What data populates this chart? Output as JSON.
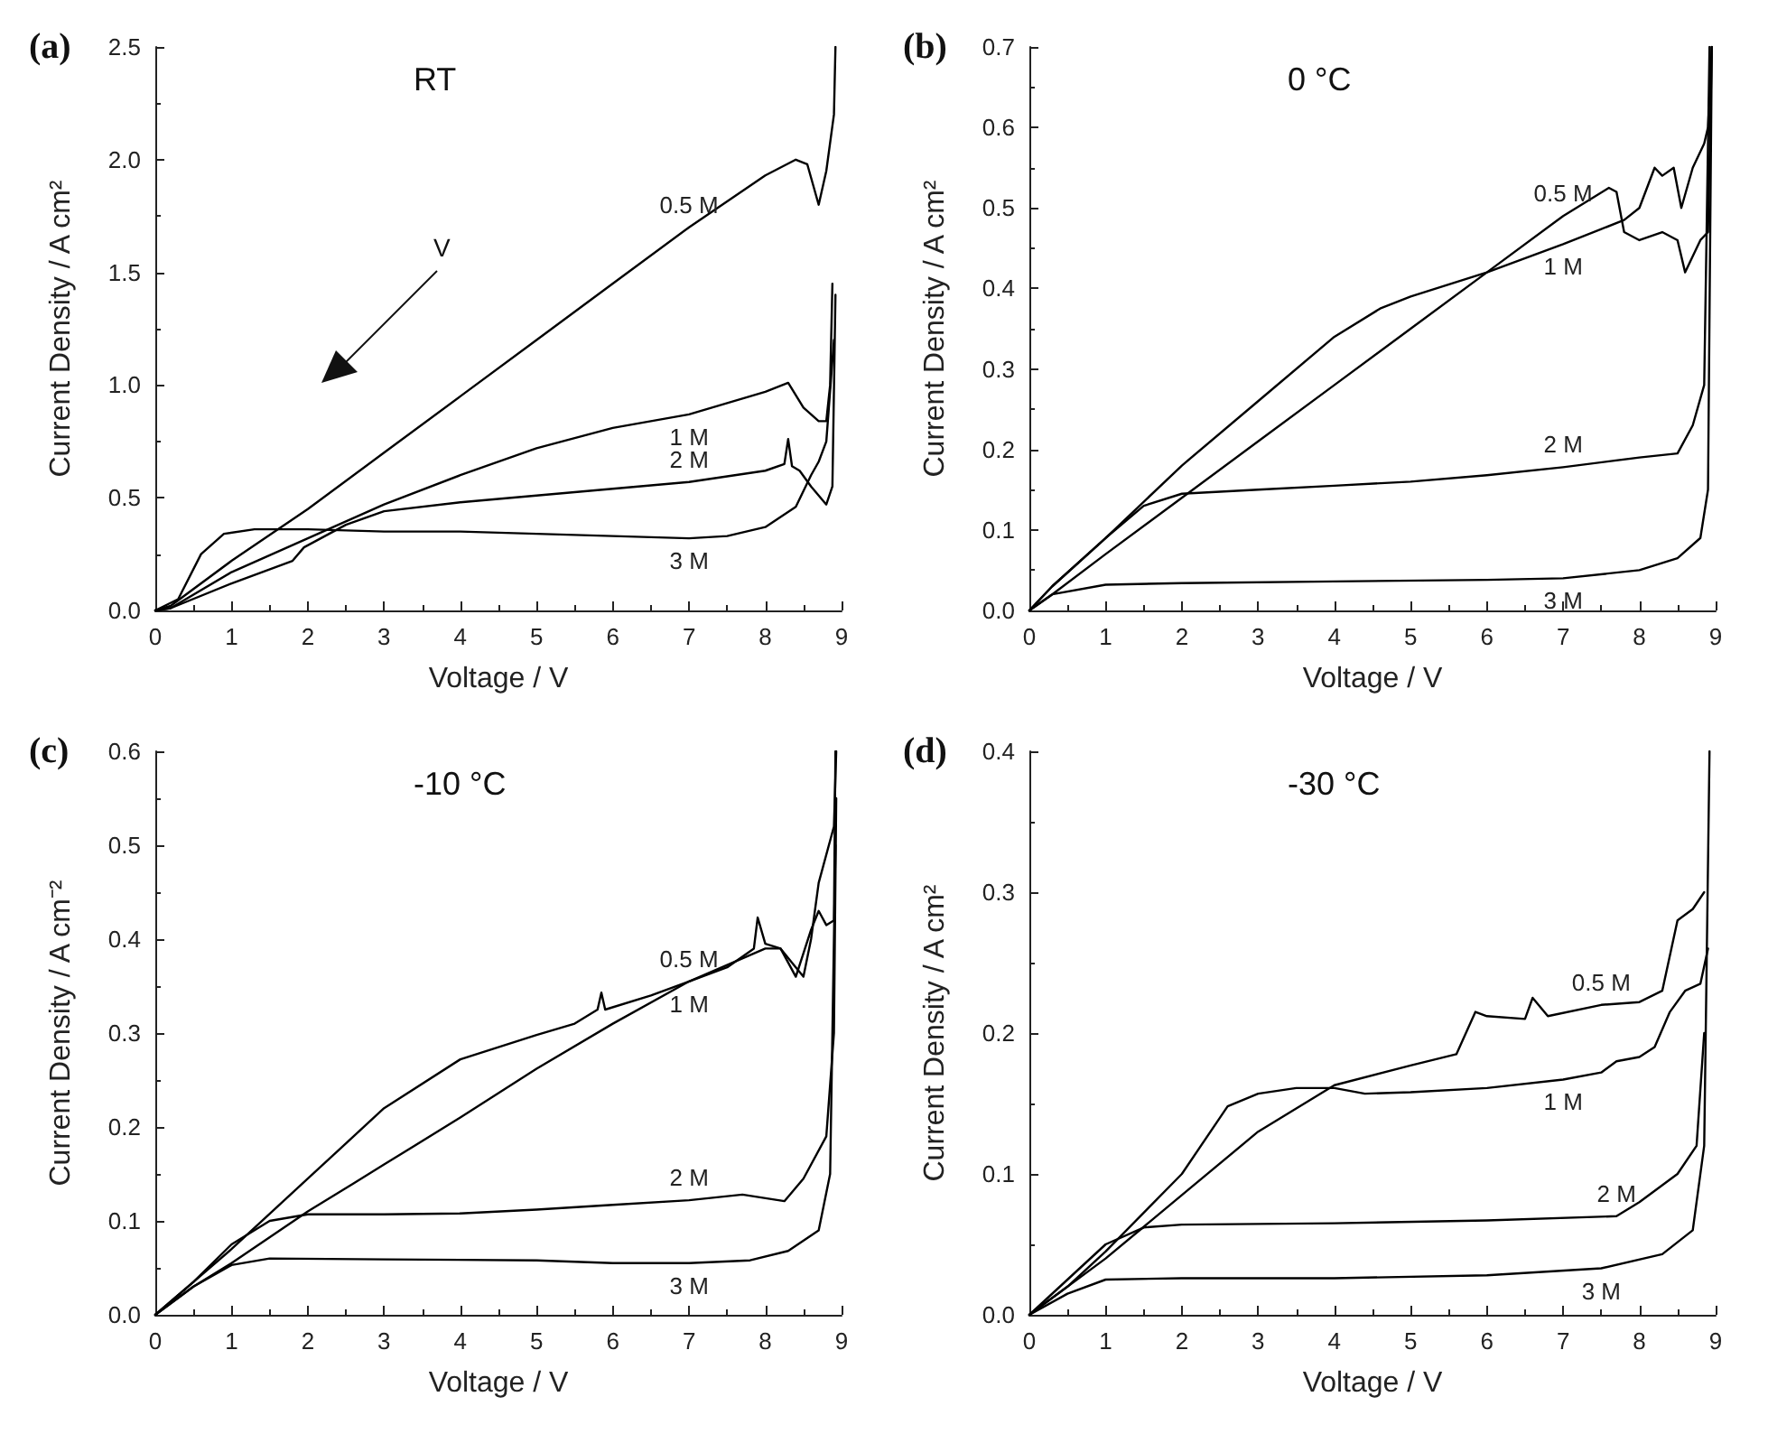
{
  "chart_data": [
    {
      "type": "line",
      "title": "RT",
      "xlabel": "Voltage / V",
      "ylabel": "Current Density / A cm²",
      "annotations": [
        "(a)",
        "V"
      ],
      "marker": "none",
      "line_style": "solid",
      "xlim": [
        0,
        9
      ],
      "xticks": [
        0,
        1,
        2,
        3,
        4,
        5,
        6,
        7,
        8,
        9
      ],
      "ylim": [
        0,
        2.5
      ],
      "yticks": [
        {
          "value": 0,
          "label": "0.0"
        },
        0.5,
        {
          "value": 1,
          "label": "1.0"
        },
        1.5,
        {
          "value": 2,
          "label": "2.0"
        },
        2.5
      ],
      "series": [
        {
          "name": "0.5 M",
          "color": "#000000",
          "x": [
            0,
            0.2,
            1,
            2,
            3,
            4,
            5,
            6,
            7,
            8,
            8.4,
            8.55,
            8.7,
            8.8,
            8.9,
            8.92
          ],
          "values": [
            0,
            0.02,
            0.22,
            0.45,
            0.7,
            0.95,
            1.2,
            1.45,
            1.7,
            1.93,
            2.0,
            1.98,
            1.8,
            1.95,
            2.2,
            2.5
          ]
        },
        {
          "name": "1 M",
          "color": "#000000",
          "x": [
            0,
            0.2,
            1,
            2,
            3,
            4,
            5,
            6,
            7,
            8,
            8.3,
            8.5,
            8.7,
            8.8,
            8.85,
            8.88
          ],
          "values": [
            0,
            0.01,
            0.17,
            0.32,
            0.47,
            0.6,
            0.72,
            0.81,
            0.87,
            0.97,
            1.01,
            0.9,
            0.84,
            0.84,
            1.0,
            1.45
          ]
        },
        {
          "name": "2 M",
          "color": "#000000",
          "x": [
            0,
            0.2,
            1,
            1.8,
            1.95,
            2.5,
            3,
            4,
            5,
            6,
            7,
            8,
            8.25,
            8.3,
            8.35,
            8.45,
            8.6,
            8.8,
            8.88,
            8.92
          ],
          "values": [
            0,
            0.01,
            0.12,
            0.22,
            0.28,
            0.38,
            0.44,
            0.48,
            0.51,
            0.54,
            0.57,
            0.62,
            0.65,
            0.76,
            0.64,
            0.62,
            0.55,
            0.47,
            0.55,
            1.4
          ]
        },
        {
          "name": "3 M",
          "color": "#000000",
          "x": [
            0,
            0.3,
            0.6,
            0.9,
            1.3,
            2,
            3,
            4,
            5,
            6,
            7,
            7.5,
            8,
            8.4,
            8.6,
            8.7,
            8.8,
            8.9
          ],
          "values": [
            0,
            0.05,
            0.25,
            0.34,
            0.36,
            0.36,
            0.35,
            0.35,
            0.34,
            0.33,
            0.32,
            0.33,
            0.37,
            0.46,
            0.6,
            0.66,
            0.75,
            1.2
          ]
        }
      ]
    },
    {
      "type": "line",
      "title": "0 °C",
      "xlabel": "Voltage / V",
      "ylabel": "Current Density / A cm²",
      "annotations": [
        "(b)"
      ],
      "marker": "none",
      "line_style": "solid",
      "xlim": [
        0,
        9
      ],
      "xticks": [
        0,
        1,
        2,
        3,
        4,
        5,
        6,
        7,
        8,
        9
      ],
      "ylim": [
        0,
        0.7
      ],
      "yticks": [
        {
          "value": 0,
          "label": "0.0"
        },
        0.1,
        0.2,
        0.3,
        0.4,
        0.5,
        0.6,
        0.7
      ],
      "series": [
        {
          "name": "0.5 M",
          "color": "#000000",
          "x": [
            0,
            0.3,
            1,
            2,
            3,
            4,
            5,
            6,
            7,
            7.6,
            7.7,
            7.8,
            8,
            8.3,
            8.5,
            8.6,
            8.7,
            8.8,
            8.9,
            8.95
          ],
          "values": [
            0,
            0.02,
            0.07,
            0.14,
            0.21,
            0.28,
            0.35,
            0.42,
            0.49,
            0.525,
            0.52,
            0.47,
            0.46,
            0.47,
            0.46,
            0.42,
            0.44,
            0.46,
            0.47,
            0.7
          ]
        },
        {
          "name": "1 M",
          "color": "#000000",
          "x": [
            0,
            0.3,
            1,
            2,
            3,
            4,
            4.6,
            5,
            6,
            7,
            7.8,
            8,
            8.2,
            8.3,
            8.45,
            8.55,
            8.7,
            8.85,
            8.9,
            8.95
          ],
          "values": [
            0,
            0.03,
            0.09,
            0.18,
            0.26,
            0.34,
            0.375,
            0.39,
            0.42,
            0.455,
            0.485,
            0.5,
            0.55,
            0.54,
            0.55,
            0.5,
            0.55,
            0.58,
            0.6,
            0.7
          ]
        },
        {
          "name": "2 M",
          "color": "#000000",
          "x": [
            0,
            0.3,
            1,
            1.5,
            2,
            3,
            4,
            5,
            6,
            7,
            8,
            8.5,
            8.7,
            8.85,
            8.92
          ],
          "values": [
            0,
            0.03,
            0.09,
            0.13,
            0.145,
            0.15,
            0.155,
            0.16,
            0.168,
            0.178,
            0.19,
            0.195,
            0.23,
            0.28,
            0.7
          ]
        },
        {
          "name": "3 M",
          "color": "#000000",
          "x": [
            0,
            0.3,
            1,
            2,
            4,
            6,
            7,
            8,
            8.5,
            8.8,
            8.9,
            8.95
          ],
          "values": [
            0,
            0.02,
            0.032,
            0.034,
            0.036,
            0.038,
            0.04,
            0.05,
            0.065,
            0.09,
            0.15,
            0.7
          ]
        }
      ]
    },
    {
      "type": "line",
      "title": "-10 °C",
      "xlabel": "Voltage / V",
      "ylabel": "Current Density / A cm⁻²",
      "annotations": [
        "(c)"
      ],
      "marker": "none",
      "line_style": "solid",
      "xlim": [
        0,
        9
      ],
      "xticks": [
        0,
        1,
        2,
        3,
        4,
        5,
        6,
        7,
        8,
        9
      ],
      "ylim": [
        0,
        0.6
      ],
      "yticks": [
        {
          "value": 0,
          "label": "0.0"
        },
        0.1,
        0.2,
        0.3,
        0.4,
        0.5,
        0.6
      ],
      "series": [
        {
          "name": "0.5 M",
          "color": "#000000",
          "x": [
            0,
            0.5,
            1,
            2,
            3,
            4,
            5,
            5.5,
            5.8,
            5.85,
            5.9,
            6.5,
            7,
            7.5,
            7.85,
            7.9,
            8,
            8.2,
            8.4,
            8.6,
            8.7,
            8.8,
            8.9,
            8.92
          ],
          "values": [
            0,
            0.035,
            0.07,
            0.145,
            0.22,
            0.272,
            0.298,
            0.31,
            0.325,
            0.343,
            0.325,
            0.34,
            0.355,
            0.37,
            0.39,
            0.423,
            0.395,
            0.39,
            0.36,
            0.41,
            0.43,
            0.415,
            0.42,
            0.6
          ]
        },
        {
          "name": "1 M",
          "color": "#000000",
          "x": [
            0,
            0.5,
            1,
            2,
            2.6,
            3,
            4,
            5,
            6,
            7,
            8,
            8.2,
            8.4,
            8.5,
            8.6,
            8.7,
            8.9,
            8.93
          ],
          "values": [
            0,
            0.03,
            0.055,
            0.11,
            0.14,
            0.16,
            0.21,
            0.262,
            0.31,
            0.355,
            0.39,
            0.39,
            0.37,
            0.36,
            0.4,
            0.46,
            0.52,
            0.6
          ]
        },
        {
          "name": "2 M",
          "color": "#000000",
          "x": [
            0,
            0.5,
            1,
            1.5,
            2,
            3,
            4,
            5,
            6,
            7,
            7.7,
            8.25,
            8.5,
            8.8,
            8.9,
            8.93
          ],
          "values": [
            0,
            0.035,
            0.075,
            0.1,
            0.107,
            0.107,
            0.108,
            0.112,
            0.117,
            0.122,
            0.128,
            0.121,
            0.145,
            0.19,
            0.3,
            0.55
          ]
        },
        {
          "name": "3 M",
          "color": "#000000",
          "x": [
            0,
            0.5,
            1,
            1.5,
            3,
            5,
            6,
            7,
            7.8,
            8.3,
            8.7,
            8.85,
            8.92
          ],
          "values": [
            0,
            0.03,
            0.053,
            0.06,
            0.059,
            0.058,
            0.055,
            0.055,
            0.058,
            0.068,
            0.09,
            0.15,
            0.5
          ]
        }
      ]
    },
    {
      "type": "line",
      "title": "-30 °C",
      "xlabel": "Voltage / V",
      "ylabel": "Current Density / A cm²",
      "annotations": [
        "(d)"
      ],
      "marker": "none",
      "line_style": "solid",
      "xlim": [
        0,
        9
      ],
      "xticks": [
        0,
        1,
        2,
        3,
        4,
        5,
        6,
        7,
        8,
        9
      ],
      "ylim": [
        0,
        0.4
      ],
      "yticks": [
        {
          "value": 0,
          "label": "0.0"
        },
        0.1,
        0.2,
        0.3,
        0.4
      ],
      "series": [
        {
          "name": "0.5 M",
          "color": "#000000",
          "x": [
            0,
            1,
            2,
            3,
            4,
            5,
            5.6,
            5.85,
            6,
            6.5,
            6.6,
            6.8,
            7.5,
            8,
            8.3,
            8.5,
            8.7,
            8.85
          ],
          "values": [
            0,
            0.04,
            0.085,
            0.13,
            0.163,
            0.177,
            0.185,
            0.215,
            0.212,
            0.21,
            0.225,
            0.212,
            0.22,
            0.222,
            0.23,
            0.28,
            0.288,
            0.3
          ]
        },
        {
          "name": "1 M",
          "color": "#000000",
          "x": [
            0,
            0.5,
            1,
            2,
            2.6,
            3,
            3.5,
            4,
            4.4,
            5,
            6,
            7,
            7.5,
            7.7,
            8,
            8.2,
            8.4,
            8.6,
            8.8,
            8.9
          ],
          "values": [
            0,
            0.02,
            0.045,
            0.1,
            0.148,
            0.157,
            0.161,
            0.161,
            0.157,
            0.158,
            0.161,
            0.167,
            0.172,
            0.18,
            0.183,
            0.19,
            0.215,
            0.23,
            0.235,
            0.26
          ]
        },
        {
          "name": "2 M",
          "color": "#000000",
          "x": [
            0,
            0.5,
            1,
            1.5,
            2,
            4,
            6,
            7.7,
            8,
            8.5,
            8.75,
            8.85
          ],
          "values": [
            0,
            0.025,
            0.05,
            0.062,
            0.064,
            0.065,
            0.067,
            0.07,
            0.08,
            0.1,
            0.12,
            0.2
          ]
        },
        {
          "name": "3 M",
          "color": "#000000",
          "x": [
            0,
            0.5,
            1,
            2,
            4,
            6,
            7.5,
            8.3,
            8.7,
            8.85,
            8.92
          ],
          "values": [
            0,
            0.015,
            0.025,
            0.026,
            0.026,
            0.028,
            0.033,
            0.043,
            0.06,
            0.12,
            0.4
          ]
        }
      ]
    }
  ]
}
